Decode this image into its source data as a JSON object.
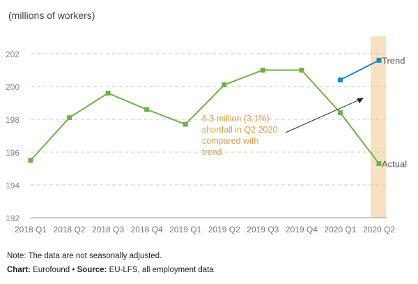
{
  "chart_data": {
    "type": "line",
    "ylabel": "(millions of workers)",
    "categories": [
      "2018 Q1",
      "2018 Q2",
      "2018 Q3",
      "2018 Q4",
      "2019 Q1",
      "2019 Q2",
      "2019 Q3",
      "2019 Q4",
      "2020 Q1",
      "2020 Q2"
    ],
    "ylim": [
      192,
      203
    ],
    "yticks": [
      192,
      194,
      196,
      198,
      200,
      202
    ],
    "grid": true,
    "series": [
      {
        "name": "Actual",
        "color": "#6ab445",
        "values": [
          195.5,
          198.1,
          199.6,
          198.6,
          197.7,
          200.1,
          201.0,
          201.0,
          198.4,
          195.3
        ]
      },
      {
        "name": "Trend",
        "color": "#1a88c8",
        "x": [
          "2020 Q1",
          "2020 Q2"
        ],
        "values": [
          200.4,
          201.6
        ]
      }
    ],
    "highlight_category": "2020 Q2",
    "highlight_color": "#f7e1c1",
    "annotation": {
      "lines": [
        "6.3 million (3.1%)",
        "shortfall in Q2 2020",
        "compared with",
        "trend"
      ],
      "color": "#d9a04a"
    }
  },
  "footer": {
    "note": "Note: The data are not seasonally adjusted.",
    "chart_label": "Chart:",
    "chart_value": " Eurofound • ",
    "source_label": "Source:",
    "source_value": " EU-LFS, all employment data"
  }
}
